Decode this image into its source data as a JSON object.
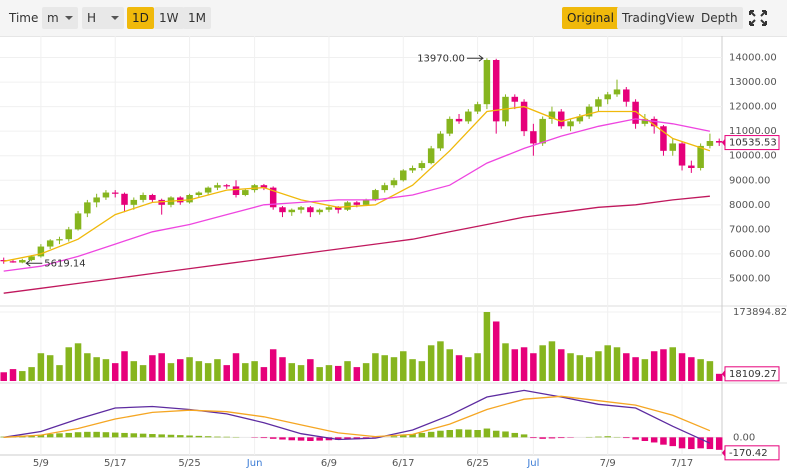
{
  "toolbar": {
    "left": [
      "Time",
      "m",
      "H",
      "1D",
      "1W",
      "1M"
    ],
    "right": [
      "Original",
      "TradingView",
      "Depth"
    ]
  },
  "chart_data": {
    "type": "candlestick",
    "xlim": [
      -0.4,
      77.3
    ],
    "xticks": [
      {
        "value": 4,
        "label": "5/9"
      },
      {
        "value": 12,
        "label": "5/17"
      },
      {
        "value": 20,
        "label": "5/25"
      },
      {
        "value": 27,
        "label": "Jun"
      },
      {
        "value": 35,
        "label": "6/9"
      },
      {
        "value": 43,
        "label": "6/17"
      },
      {
        "value": 51,
        "label": "6/25"
      },
      {
        "value": 57,
        "label": "Jul"
      },
      {
        "value": 65,
        "label": "7/9"
      },
      {
        "value": 73,
        "label": "7/17"
      }
    ],
    "ylim": [
      4000,
      15000
    ],
    "yticks": [
      {
        "value": 5000,
        "label": "5000.00"
      },
      {
        "value": 6000,
        "label": "6000.00"
      },
      {
        "value": 7000,
        "label": "7000.00"
      },
      {
        "value": 8000,
        "label": "8000.00"
      },
      {
        "value": 9000,
        "label": "9000.00"
      },
      {
        "value": 10000,
        "label": "10000.00"
      },
      {
        "value": 11000,
        "label": "11000.00"
      },
      {
        "value": 12000,
        "label": "12000.00"
      },
      {
        "value": 13000,
        "label": "13000.00"
      },
      {
        "value": 14000,
        "label": "14000.00"
      }
    ],
    "grid": true,
    "up_color": "#86b51e",
    "down_color": "#e6007a",
    "candles": [
      [
        5750,
        5850,
        5600,
        5700
      ],
      [
        5700,
        5780,
        5640,
        5650
      ],
      [
        5650,
        5800,
        5619.14,
        5750
      ],
      [
        5750,
        5950,
        5700,
        5900
      ],
      [
        5900,
        6400,
        5850,
        6300
      ],
      [
        6300,
        6600,
        6200,
        6550
      ],
      [
        6550,
        6700,
        6400,
        6600
      ],
      [
        6600,
        7100,
        6500,
        7000
      ],
      [
        7000,
        7750,
        6950,
        7650
      ],
      [
        7650,
        8200,
        7500,
        8100
      ],
      [
        8100,
        8450,
        7900,
        8300
      ],
      [
        8300,
        8600,
        8200,
        8500
      ],
      [
        8500,
        8600,
        8300,
        8450
      ],
      [
        8450,
        8500,
        7700,
        8000
      ],
      [
        8000,
        8300,
        7800,
        8200
      ],
      [
        8200,
        8500,
        8100,
        8400
      ],
      [
        8400,
        8450,
        8100,
        8200
      ],
      [
        8200,
        8250,
        7600,
        8000
      ],
      [
        8000,
        8350,
        7900,
        8300
      ],
      [
        8300,
        8350,
        8000,
        8100
      ],
      [
        8100,
        8450,
        8050,
        8400
      ],
      [
        8400,
        8550,
        8300,
        8500
      ],
      [
        8500,
        8750,
        8400,
        8700
      ],
      [
        8700,
        8900,
        8600,
        8800
      ],
      [
        8800,
        8850,
        8650,
        8750
      ],
      [
        8750,
        9000,
        8300,
        8400
      ],
      [
        8400,
        8650,
        8350,
        8600
      ],
      [
        8600,
        8850,
        8500,
        8800
      ],
      [
        8800,
        8850,
        8600,
        8700
      ],
      [
        8700,
        8750,
        7800,
        7900
      ],
      [
        7900,
        7950,
        7500,
        7700
      ],
      [
        7700,
        7850,
        7550,
        7800
      ],
      [
        7800,
        7950,
        7650,
        7900
      ],
      [
        7900,
        7950,
        7500,
        7700
      ],
      [
        7700,
        7850,
        7600,
        7800
      ],
      [
        7800,
        8000,
        7700,
        7900
      ],
      [
        7900,
        7950,
        7650,
        7800
      ],
      [
        7800,
        8150,
        7750,
        8100
      ],
      [
        8100,
        8150,
        7900,
        8000
      ],
      [
        8000,
        8250,
        7950,
        8200
      ],
      [
        8200,
        8650,
        8150,
        8600
      ],
      [
        8600,
        8900,
        8500,
        8800
      ],
      [
        8800,
        9100,
        8700,
        9000
      ],
      [
        9000,
        9450,
        8950,
        9400
      ],
      [
        9400,
        9600,
        9300,
        9500
      ],
      [
        9500,
        9800,
        9400,
        9700
      ],
      [
        9700,
        10400,
        9650,
        10300
      ],
      [
        10300,
        11000,
        10200,
        10900
      ],
      [
        10900,
        11600,
        10800,
        11500
      ],
      [
        11500,
        11700,
        11300,
        11400
      ],
      [
        11400,
        11900,
        11300,
        11800
      ],
      [
        11800,
        12200,
        11700,
        12100
      ],
      [
        12100,
        13970,
        11900,
        13900
      ],
      [
        13900,
        13950,
        10900,
        11400
      ],
      [
        11400,
        12500,
        11200,
        12400
      ],
      [
        12400,
        12500,
        11900,
        12200
      ],
      [
        12200,
        12300,
        10800,
        11000
      ],
      [
        11000,
        11300,
        10000,
        10500
      ],
      [
        10500,
        11600,
        10400,
        11500
      ],
      [
        11500,
        12000,
        11300,
        11800
      ],
      [
        11800,
        11900,
        11100,
        11200
      ],
      [
        11200,
        11500,
        11000,
        11400
      ],
      [
        11400,
        11700,
        11300,
        11600
      ],
      [
        11600,
        12100,
        11500,
        12000
      ],
      [
        12000,
        12400,
        11800,
        12300
      ],
      [
        12300,
        12600,
        12100,
        12500
      ],
      [
        12500,
        13100,
        12400,
        12700
      ],
      [
        12700,
        12800,
        12000,
        12200
      ],
      [
        12200,
        12300,
        11100,
        11300
      ],
      [
        11300,
        11700,
        11200,
        11500
      ],
      [
        11500,
        11600,
        10900,
        11200
      ],
      [
        11200,
        11250,
        10000,
        10200
      ],
      [
        10200,
        10700,
        10000,
        10500
      ],
      [
        10500,
        10600,
        9400,
        9600
      ],
      [
        9600,
        9800,
        9300,
        9500
      ],
      [
        9500,
        10500,
        9400,
        10400
      ],
      [
        10400,
        10900,
        10300,
        10600
      ],
      [
        10600,
        10700,
        10400,
        10535.53
      ]
    ],
    "lines": [
      {
        "color": "#f0b90b",
        "x": [
          0,
          4,
          8,
          12,
          16,
          20,
          24,
          28,
          32,
          36,
          40,
          44,
          48,
          52,
          56,
          60,
          64,
          68,
          72,
          76
        ],
        "values": [
          5700,
          6000,
          6600,
          7600,
          8100,
          8200,
          8600,
          8700,
          8200,
          7900,
          8000,
          8800,
          10200,
          11800,
          12000,
          11400,
          11800,
          11800,
          10700,
          10200
        ]
      },
      {
        "color": "#ee46e0",
        "x": [
          0,
          4,
          8,
          12,
          16,
          20,
          24,
          28,
          32,
          36,
          40,
          44,
          48,
          52,
          56,
          60,
          64,
          68,
          72,
          76
        ],
        "values": [
          5300,
          5500,
          5900,
          6400,
          6900,
          7200,
          7600,
          8000,
          8100,
          8200,
          8200,
          8400,
          8800,
          9700,
          10300,
          10800,
          11200,
          11500,
          11300,
          11000
        ]
      },
      {
        "color": "#c0185d",
        "x": [
          0,
          4,
          8,
          12,
          16,
          20,
          24,
          28,
          32,
          36,
          40,
          44,
          48,
          52,
          56,
          60,
          64,
          68,
          72,
          76
        ],
        "values": [
          4400,
          4600,
          4800,
          5000,
          5200,
          5400,
          5600,
          5800,
          6000,
          6200,
          6400,
          6600,
          6900,
          7200,
          7500,
          7700,
          7900,
          8000,
          8200,
          8350
        ]
      }
    ],
    "annotations": [
      {
        "x": 52,
        "value": 13970,
        "label": "13970.00",
        "side": "left"
      },
      {
        "x": 2,
        "value": 5619.14,
        "label": "5619.14",
        "side": "right"
      }
    ],
    "volume": {
      "ylim": [
        0,
        173894.82
      ],
      "yticks": [
        173894.82
      ],
      "values": [
        22000,
        30000,
        25000,
        35000,
        70000,
        65000,
        40000,
        85000,
        95000,
        70000,
        60000,
        55000,
        45000,
        75000,
        50000,
        40000,
        65000,
        70000,
        45000,
        55000,
        60000,
        50000,
        45000,
        55000,
        40000,
        70000,
        45000,
        50000,
        35000,
        80000,
        60000,
        45000,
        40000,
        55000,
        35000,
        40000,
        38000,
        50000,
        35000,
        45000,
        70000,
        65000,
        60000,
        75000,
        55000,
        50000,
        90000,
        100000,
        80000,
        65000,
        60000,
        70000,
        173894.82,
        150000,
        95000,
        80000,
        85000,
        70000,
        90000,
        100000,
        80000,
        70000,
        65000,
        60000,
        75000,
        90000,
        85000,
        70000,
        60000,
        55000,
        75000,
        80000,
        85000,
        70000,
        60000,
        55000,
        50000,
        18109.27
      ]
    },
    "macd": {
      "ylim": [
        -200,
        700
      ],
      "yticks": [
        {
          "value": 0,
          "label": "0.00"
        }
      ],
      "histogram": [
        10,
        15,
        20,
        25,
        35,
        45,
        55,
        60,
        70,
        75,
        75,
        70,
        65,
        60,
        55,
        50,
        45,
        40,
        35,
        30,
        25,
        20,
        15,
        10,
        8,
        5,
        0,
        -5,
        -10,
        -20,
        -30,
        -40,
        -45,
        -50,
        -45,
        -40,
        -35,
        -30,
        -25,
        -20,
        -10,
        0,
        15,
        30,
        45,
        60,
        75,
        90,
        100,
        110,
        105,
        100,
        120,
        90,
        80,
        60,
        40,
        -10,
        -20,
        -15,
        -10,
        -5,
        0,
        5,
        10,
        15,
        5,
        -10,
        -30,
        -50,
        -70,
        -100,
        -120,
        -150,
        -160,
        -150,
        -160,
        -170.42
      ],
      "lines": [
        {
          "color": "#5d2ba0",
          "x": [
            0,
            4,
            8,
            12,
            16,
            20,
            24,
            28,
            32,
            36,
            40,
            44,
            48,
            52,
            56,
            60,
            64,
            68,
            72,
            76
          ],
          "values": [
            0,
            80,
            250,
            400,
            420,
            380,
            320,
            200,
            50,
            -30,
            -10,
            100,
            300,
            550,
            640,
            550,
            450,
            400,
            150,
            -80
          ]
        },
        {
          "color": "#f5a623",
          "x": [
            0,
            4,
            8,
            12,
            16,
            20,
            24,
            28,
            32,
            36,
            40,
            44,
            48,
            52,
            56,
            60,
            64,
            68,
            72,
            76
          ],
          "values": [
            0,
            30,
            120,
            250,
            340,
            370,
            350,
            280,
            170,
            60,
            10,
            40,
            180,
            380,
            520,
            560,
            500,
            440,
            300,
            90
          ]
        }
      ]
    }
  }
}
